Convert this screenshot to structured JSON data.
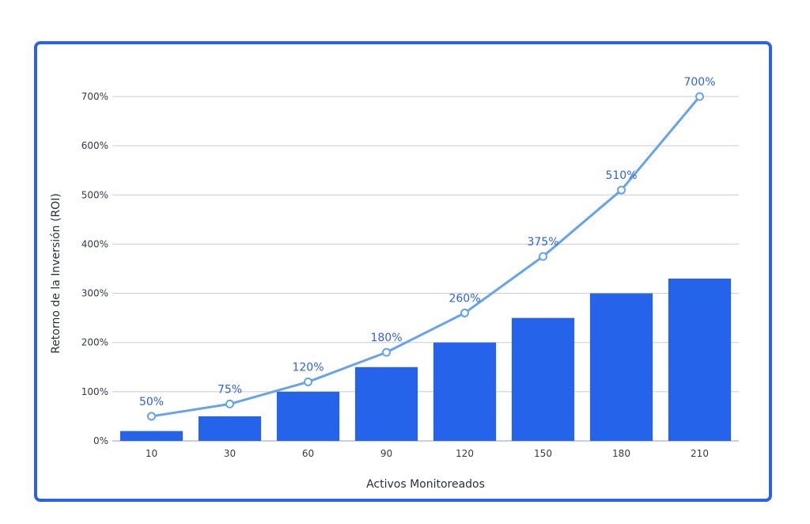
{
  "chart_data": {
    "type": "bar",
    "categories": [
      "10",
      "30",
      "60",
      "90",
      "120",
      "150",
      "180",
      "210"
    ],
    "series": [
      {
        "type": "bar",
        "values": [
          20,
          50,
          100,
          150,
          200,
          250,
          300,
          330
        ],
        "color": "#2563eb"
      },
      {
        "type": "line",
        "values": [
          50,
          75,
          120,
          180,
          260,
          375,
          510,
          700
        ],
        "color": "#64a3ef",
        "labels": [
          "50%",
          "75%",
          "120%",
          "180%",
          "260%",
          "375%",
          "510%",
          "700%"
        ]
      }
    ],
    "xlabel": "Activos Monitoreados",
    "ylabel": "Retorno de la Inversión (ROI)",
    "ylim": [
      0,
      700
    ],
    "yticks": [
      0,
      100,
      200,
      300,
      400,
      500,
      600,
      700
    ],
    "ytick_labels": [
      "0%",
      "100%",
      "200%",
      "300%",
      "400%",
      "500%",
      "600%",
      "700%"
    ],
    "grid": true,
    "colors": {
      "frame": "#2b63e6",
      "bar": "#2563eb",
      "line": "#64a3ef",
      "label": "#2b63e6",
      "grid": "#c9ccd3"
    }
  }
}
